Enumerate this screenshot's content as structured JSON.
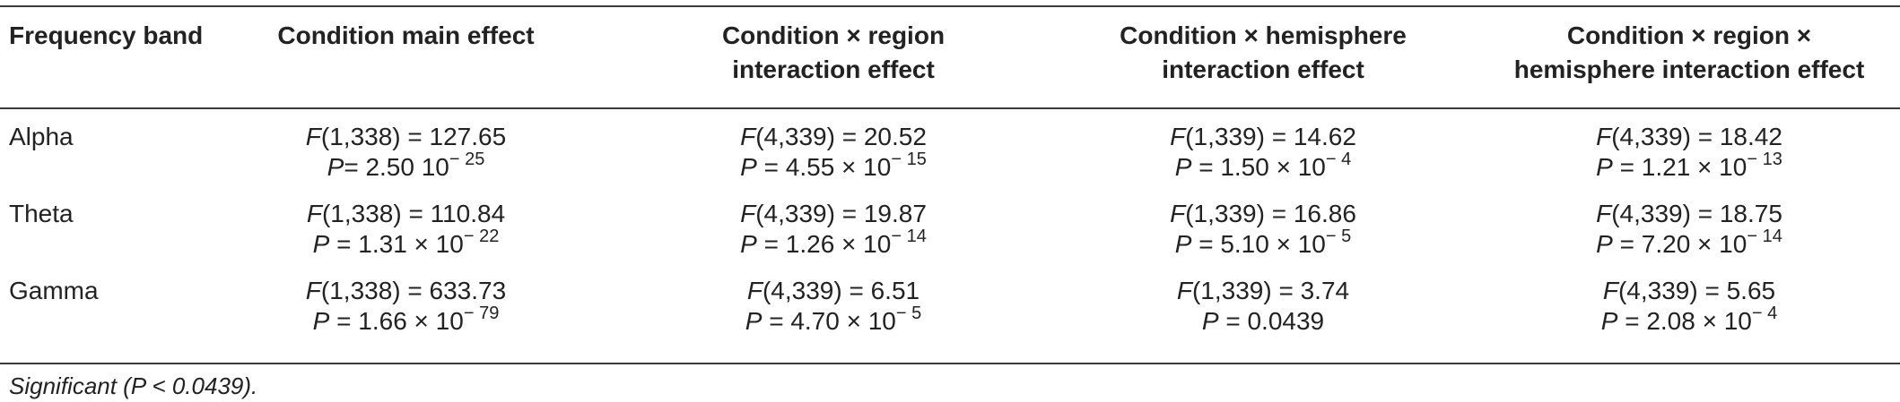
{
  "table": {
    "headers": [
      {
        "lines": [
          "Frequency band"
        ]
      },
      {
        "lines": [
          "Condition main effect"
        ]
      },
      {
        "lines": [
          "Condition × region",
          "interaction effect"
        ]
      },
      {
        "lines": [
          "Condition × hemisphere",
          "interaction effect"
        ]
      },
      {
        "lines": [
          "Condition × region ×",
          "hemisphere interaction effect"
        ]
      }
    ],
    "rows": [
      {
        "band": "Alpha",
        "cells": [
          {
            "f_stat": "F",
            "f_val": "(1,338) = 127.65",
            "p_stat": "P",
            "p_val": "= 2.50 10",
            "p_exp": "− 25"
          },
          {
            "f_stat": "F",
            "f_val": "(4,339) = 20.52",
            "p_stat": "P",
            "p_val": " = 4.55 × 10",
            "p_exp": "− 15"
          },
          {
            "f_stat": "F",
            "f_val": "(1,339) = 14.62",
            "p_stat": "P",
            "p_val": " = 1.50 × 10",
            "p_exp": "− 4"
          },
          {
            "f_stat": "F",
            "f_val": "(4,339) = 18.42",
            "p_stat": "P",
            "p_val": " = 1.21 × 10",
            "p_exp": "− 13"
          }
        ]
      },
      {
        "band": "Theta",
        "cells": [
          {
            "f_stat": "F",
            "f_val": "(1,338) = 110.84",
            "p_stat": "P",
            "p_val": " = 1.31 × 10",
            "p_exp": "− 22"
          },
          {
            "f_stat": "F",
            "f_val": "(4,339) = 19.87",
            "p_stat": "P",
            "p_val": " = 1.26 × 10",
            "p_exp": "− 14"
          },
          {
            "f_stat": "F",
            "f_val": "(1,339) = 16.86",
            "p_stat": "P",
            "p_val": " = 5.10 × 10",
            "p_exp": "− 5"
          },
          {
            "f_stat": "F",
            "f_val": "(4,339) = 18.75",
            "p_stat": "P",
            "p_val": " = 7.20 × 10",
            "p_exp": "− 14"
          }
        ]
      },
      {
        "band": "Gamma",
        "cells": [
          {
            "f_stat": "F",
            "f_val": "(1,338) = 633.73",
            "p_stat": "P",
            "p_val": " = 1.66 × 10",
            "p_exp": "− 79"
          },
          {
            "f_stat": "F",
            "f_val": "(4,339) = 6.51",
            "p_stat": "P",
            "p_val": " = 4.70 × 10",
            "p_exp": "− 5"
          },
          {
            "f_stat": "F",
            "f_val": "(1,339) = 3.74",
            "p_stat": "P",
            "p_val": " = 0.0439",
            "p_exp": ""
          },
          {
            "f_stat": "F",
            "f_val": "(4,339) = 5.65",
            "p_stat": "P",
            "p_val": " = 2.08 × 10",
            "p_exp": "− 4"
          }
        ]
      }
    ]
  },
  "footnote": "Significant (P < 0.0439)."
}
